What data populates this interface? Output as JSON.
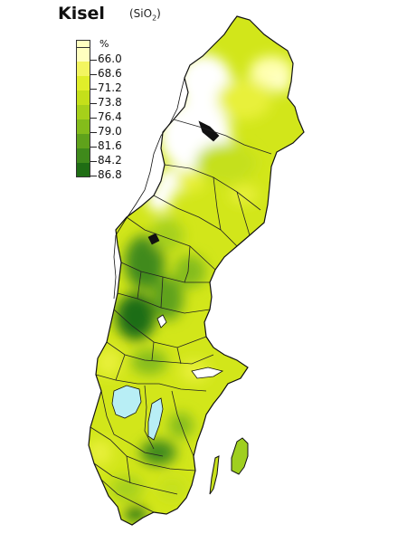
{
  "title": "Kisel",
  "formula": {
    "base": "(SiO",
    "sub": "2",
    "close": ")"
  },
  "legend": {
    "unit": "%",
    "entries": [
      {
        "label": "66.0",
        "color": "#ffffc0"
      },
      {
        "label": "68.6",
        "color": "#f3f560"
      },
      {
        "label": "71.2",
        "color": "#e0ee2a"
      },
      {
        "label": "73.8",
        "color": "#c5e01a"
      },
      {
        "label": "76.4",
        "color": "#a6d01a"
      },
      {
        "label": "79.0",
        "color": "#84bc1b"
      },
      {
        "label": "81.6",
        "color": "#5fa21b"
      },
      {
        "label": "84.2",
        "color": "#3f8a1b"
      },
      {
        "label": "86.8",
        "color": "#1f6d14"
      }
    ]
  },
  "map_colors": {
    "outline": "#111111",
    "lake": "#b8eef5",
    "border": "#222222"
  }
}
